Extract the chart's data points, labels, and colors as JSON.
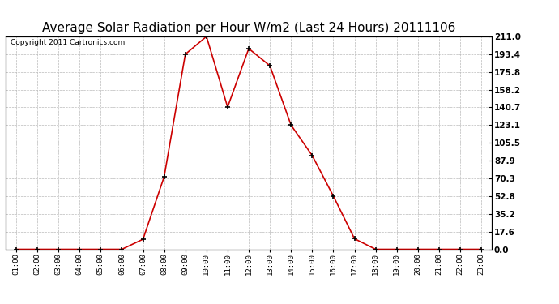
{
  "title": "Average Solar Radiation per Hour W/m2 (Last 24 Hours) 20111106",
  "copyright": "Copyright 2011 Cartronics.com",
  "hours": [
    "01:00",
    "02:00",
    "03:00",
    "04:00",
    "05:00",
    "06:00",
    "07:00",
    "08:00",
    "09:00",
    "10:00",
    "11:00",
    "12:00",
    "13:00",
    "14:00",
    "15:00",
    "16:00",
    "17:00",
    "18:00",
    "19:00",
    "20:00",
    "21:00",
    "22:00",
    "23:00"
  ],
  "values": [
    0.0,
    0.0,
    0.0,
    0.0,
    0.0,
    0.0,
    10.0,
    72.0,
    193.4,
    211.0,
    141.0,
    199.0,
    182.0,
    123.1,
    93.0,
    52.8,
    10.5,
    0.0,
    0.0,
    0.0,
    0.0,
    0.0,
    0.0
  ],
  "line_color": "#cc0000",
  "marker": "+",
  "marker_size": 5,
  "marker_linewidth": 1.2,
  "background_color": "#ffffff",
  "plot_bg_color": "#ffffff",
  "grid_color": "#bbbbbb",
  "title_fontsize": 11,
  "copyright_fontsize": 6.5,
  "ytick_labels": [
    "0.0",
    "17.6",
    "35.2",
    "52.8",
    "70.3",
    "87.9",
    "105.5",
    "123.1",
    "140.7",
    "158.2",
    "175.8",
    "193.4",
    "211.0"
  ],
  "ytick_values": [
    0.0,
    17.6,
    35.2,
    52.8,
    70.3,
    87.9,
    105.5,
    123.1,
    140.7,
    158.2,
    175.8,
    193.4,
    211.0
  ],
  "ylim": [
    0.0,
    211.0
  ],
  "border_color": "#000000",
  "line_width": 1.2
}
